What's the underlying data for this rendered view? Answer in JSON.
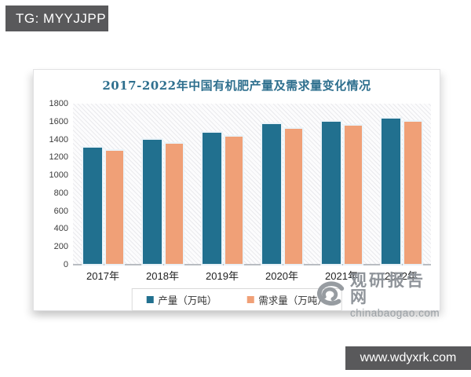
{
  "banners": {
    "tg": "TG: MYYJJPP",
    "site": "www.wdyxrk.com"
  },
  "watermark": {
    "brand": "观研报告网",
    "domain": "chinabaogao.com"
  },
  "chart_data": {
    "type": "bar",
    "title": "2017-2022年中国有机肥产量及需求量变化情况",
    "categories": [
      "2017年",
      "2018年",
      "2019年",
      "2020年",
      "2021年",
      "2022年"
    ],
    "series": [
      {
        "name": "产量（万吨）",
        "color": "#21708f",
        "values": [
          1310,
          1390,
          1475,
          1570,
          1595,
          1635
        ]
      },
      {
        "name": "需求量（万吨）",
        "color": "#f0a077",
        "values": [
          1270,
          1350,
          1430,
          1520,
          1555,
          1600
        ]
      }
    ],
    "ylim": [
      0,
      1800
    ],
    "yticks": [
      0,
      200,
      400,
      600,
      800,
      1000,
      1200,
      1400,
      1600,
      1800
    ],
    "xlabel": "",
    "ylabel": "",
    "grid": false,
    "legend_position": "bottom",
    "plot_background": "diagonal-hatch"
  },
  "colors": {
    "banner_bg": "#59595b",
    "title_text": "#2e6f8e",
    "axis_line": "#b9bdc2",
    "tick_text": "#3c3c3c",
    "watermark_text": "#8f949a"
  }
}
